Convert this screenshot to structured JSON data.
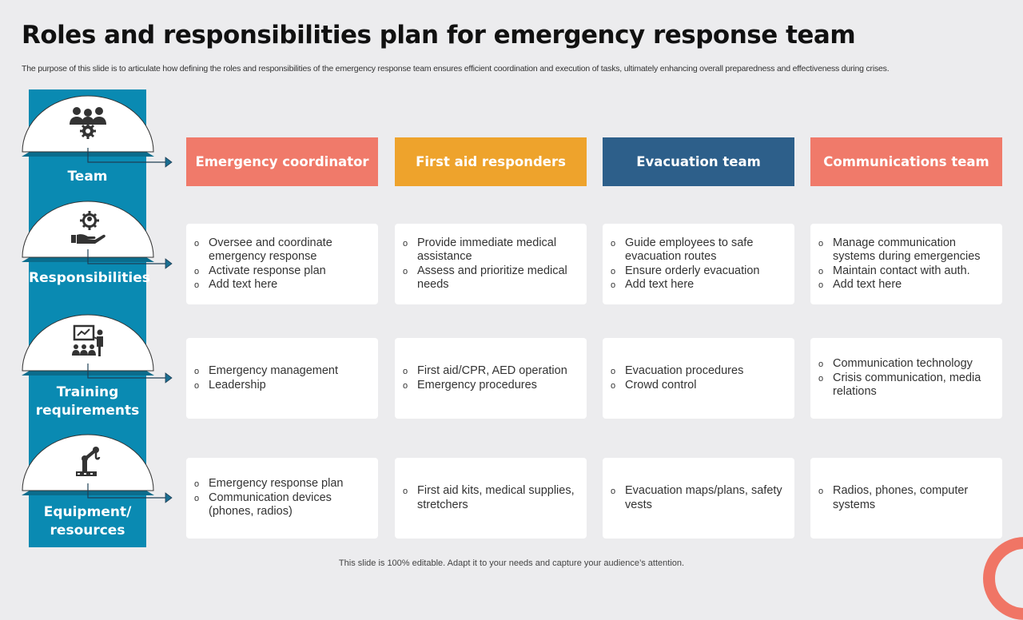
{
  "title": "Roles and responsibilities plan for emergency response team",
  "subtitle": "The purpose of this slide is to articulate how defining the roles and responsibilities of the emergency response team ensures efficient coordination and execution of tasks, ultimately enhancing overall preparedness and effectiveness during crises.",
  "colors": {
    "coral": "#f07a6a",
    "orange": "#eea32c",
    "navy": "#2d5f8a",
    "teal": "#0a8ab2",
    "background": "#ececee"
  },
  "rows": [
    {
      "label": "Team",
      "icon": "team-gear-icon"
    },
    {
      "label": "Responsibilities",
      "icon": "hand-gear-person-icon"
    },
    {
      "label": "Training requirements",
      "icon": "presentation-training-icon"
    },
    {
      "label": "Equipment/ resources",
      "icon": "robotic-arm-icon"
    }
  ],
  "columns": [
    {
      "header": "Emergency coordinator",
      "color": "#f07a6a",
      "responsibilities": [
        "Oversee and coordinate emergency response",
        "Activate response plan",
        "Add text here"
      ],
      "training": [
        "Emergency management",
        "Leadership"
      ],
      "equipment": [
        "Emergency response plan",
        "Communication devices (phones, radios)"
      ]
    },
    {
      "header": "First aid responders",
      "color": "#eea32c",
      "responsibilities": [
        "Provide immediate medical assistance",
        "Assess and prioritize medical needs"
      ],
      "training": [
        "First aid/CPR, AED operation",
        "Emergency procedures"
      ],
      "equipment": [
        "First aid kits, medical supplies, stretchers"
      ]
    },
    {
      "header": "Evacuation team",
      "color": "#2d5f8a",
      "responsibilities": [
        "Guide employees to safe evacuation routes",
        "Ensure orderly evacuation",
        "Add text here"
      ],
      "training": [
        "Evacuation procedures",
        "Crowd control"
      ],
      "equipment": [
        "Evacuation maps/plans, safety vests"
      ]
    },
    {
      "header": "Communications team",
      "color": "#f07a6a",
      "responsibilities": [
        "Manage communication systems during emergencies",
        "Maintain contact with auth.",
        "Add text here"
      ],
      "training": [
        "Communication technology",
        "Crisis communication, media relations"
      ],
      "equipment": [
        "Radios, phones, computer systems"
      ]
    }
  ],
  "footer": "This slide is 100% editable. Adapt it to your needs and capture your audience’s attention."
}
